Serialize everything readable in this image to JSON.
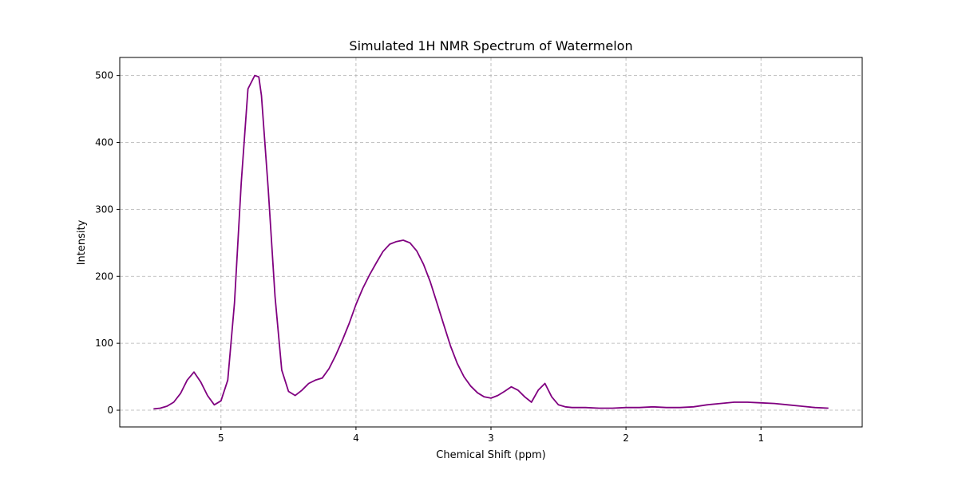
{
  "chart_data": {
    "type": "line",
    "title": "Simulated 1H NMR Spectrum of Watermelon",
    "xlabel": "Chemical Shift (ppm)",
    "ylabel": "Intensity",
    "x_reversed": true,
    "xlim": [
      5.75,
      0.25
    ],
    "ylim": [
      -25,
      527
    ],
    "xticks": [
      5,
      4,
      3,
      2,
      1
    ],
    "yticks": [
      0,
      100,
      200,
      300,
      400,
      500
    ],
    "grid": true,
    "grid_style": "dashed",
    "line_color": "#800080",
    "series": [
      {
        "x": [
          5.5,
          5.45,
          5.4,
          5.35,
          5.3,
          5.25,
          5.2,
          5.15,
          5.1,
          5.05,
          5.0,
          4.95,
          4.9,
          4.85,
          4.8,
          4.75,
          4.72,
          4.7,
          4.65,
          4.6,
          4.55,
          4.5,
          4.45,
          4.4,
          4.35,
          4.3,
          4.25,
          4.2,
          4.15,
          4.1,
          4.05,
          4.0,
          3.95,
          3.9,
          3.85,
          3.8,
          3.75,
          3.7,
          3.65,
          3.6,
          3.55,
          3.5,
          3.45,
          3.4,
          3.35,
          3.3,
          3.25,
          3.2,
          3.15,
          3.1,
          3.05,
          3.0,
          2.95,
          2.9,
          2.85,
          2.8,
          2.75,
          2.7,
          2.65,
          2.6,
          2.55,
          2.5,
          2.45,
          2.4,
          2.3,
          2.2,
          2.1,
          2.0,
          1.9,
          1.8,
          1.7,
          1.6,
          1.5,
          1.4,
          1.3,
          1.2,
          1.1,
          1.0,
          0.9,
          0.8,
          0.7,
          0.6,
          0.5
        ],
        "y": [
          2,
          3,
          6,
          12,
          25,
          45,
          57,
          42,
          22,
          8,
          14,
          45,
          160,
          340,
          480,
          500,
          498,
          470,
          330,
          170,
          60,
          28,
          22,
          30,
          40,
          45,
          48,
          62,
          82,
          105,
          130,
          158,
          182,
          202,
          220,
          237,
          248,
          252,
          254,
          250,
          238,
          218,
          192,
          160,
          128,
          96,
          70,
          50,
          36,
          26,
          20,
          18,
          22,
          28,
          35,
          30,
          20,
          12,
          30,
          40,
          20,
          8,
          5,
          4,
          4,
          3,
          3,
          4,
          4,
          5,
          4,
          4,
          5,
          8,
          10,
          12,
          12,
          11,
          10,
          8,
          6,
          4,
          3
        ]
      }
    ]
  }
}
